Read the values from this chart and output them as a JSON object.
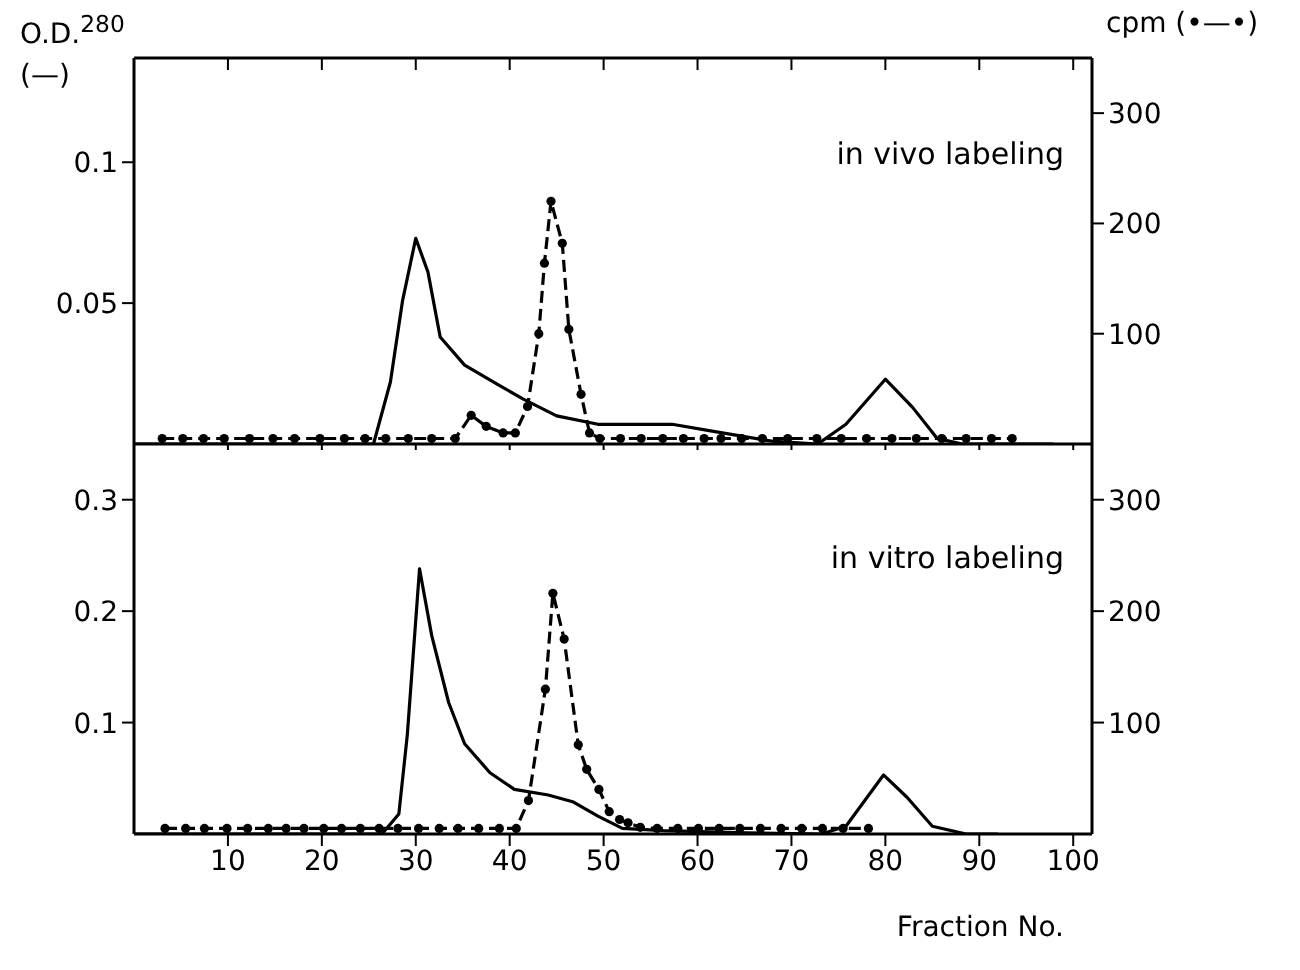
{
  "chart_data": [
    {
      "type": "line",
      "ylabel": "O.D.$^{280}$ (—)",
      "y2label": "cpm (•—•)",
      "annotations": [
        "in vivo labeling"
      ],
      "tick_labels": "y",
      "xlim": [
        0,
        102
      ],
      "xticks": [
        10,
        20,
        30,
        40,
        50,
        60,
        70,
        80,
        90,
        100
      ],
      "ylim": [
        0,
        0.137
      ],
      "yticks": [
        0.05,
        0.1
      ],
      "y2lim": [
        0,
        350
      ],
      "y2ticks": [
        100,
        200,
        300
      ],
      "series": [
        {
          "type": "line",
          "color": "#000000",
          "marker": "none",
          "line_style": "solid",
          "x": [
            0,
            10,
            20,
            25.5,
            27.3,
            28.6,
            30,
            31.3,
            32.6,
            35.2,
            38.8,
            41.4,
            45,
            49.4,
            57.3,
            61.7,
            67.9,
            72.8,
            75.8,
            80,
            82.9,
            85.5,
            88.2,
            97.9
          ],
          "values": [
            0,
            0,
            0,
            0,
            0.022,
            0.051,
            0.073,
            0.061,
            0.038,
            0.028,
            0.021,
            0.016,
            0.01,
            0.007,
            0.007,
            0.0045,
            0.001,
            0,
            0.007,
            0.023,
            0.013,
            0.002,
            0,
            0
          ]
        },
        {
          "type": "line",
          "axis": "y2",
          "color": "#000000",
          "marker": "circle",
          "line_style": "dashed",
          "x": [
            3,
            5.2,
            7.4,
            9.6,
            12.3,
            14.8,
            17.1,
            19.8,
            22.4,
            24.6,
            26.8,
            29.2,
            31.7,
            34.2,
            35.9,
            37.5,
            39.3,
            40.6,
            41.9,
            43.1,
            43.7,
            44.4,
            45.6,
            46.3,
            47.6,
            48.5,
            49.6,
            51.8,
            54,
            56.3,
            58.5,
            60.7,
            62.5,
            64.7,
            66.9,
            69.6,
            72.7,
            75.3,
            78,
            80.7,
            83.3,
            86,
            88.6,
            91.3,
            93.5
          ],
          "values": [
            5,
            5,
            5,
            5,
            5,
            5,
            5,
            5,
            5,
            5,
            5,
            5,
            5,
            5,
            26,
            16,
            10,
            10,
            34,
            100,
            164,
            220,
            182,
            104,
            45,
            10,
            5,
            5,
            5,
            5,
            5,
            5,
            5,
            5,
            5,
            5,
            5,
            5,
            5,
            5,
            5,
            5,
            5,
            5,
            5
          ]
        }
      ]
    },
    {
      "type": "line",
      "xlabel": "Fraction No.",
      "annotations": [
        "in vitro labeling"
      ],
      "xlim": [
        0,
        102
      ],
      "xticks": [
        10,
        20,
        30,
        40,
        50,
        60,
        70,
        80,
        90,
        100
      ],
      "ylim": [
        0,
        0.35
      ],
      "yticks": [
        0.1,
        0.2,
        0.3
      ],
      "y2lim": [
        0,
        350
      ],
      "y2ticks": [
        100,
        200,
        300
      ],
      "series": [
        {
          "type": "line",
          "color": "#000000",
          "marker": "none",
          "line_style": "solid",
          "x": [
            0,
            10,
            20,
            26.4,
            28.2,
            29.1,
            30.4,
            31.7,
            33.5,
            35.2,
            37.9,
            40.5,
            44.1,
            46.7,
            49.4,
            52,
            56.4,
            65.3,
            73.2,
            75.8,
            79.8,
            82.3,
            85,
            88.6,
            92
          ],
          "values": [
            0,
            0,
            0,
            0,
            0.018,
            0.089,
            0.238,
            0.178,
            0.118,
            0.081,
            0.055,
            0.04,
            0.035,
            0.029,
            0.016,
            0.005,
            0.003,
            0.001,
            0,
            0.007,
            0.053,
            0.033,
            0.007,
            0,
            0
          ]
        },
        {
          "type": "line",
          "axis": "y2",
          "color": "#000000",
          "marker": "circle",
          "line_style": "dashed",
          "x": [
            3.3,
            5.5,
            7.5,
            9.9,
            12.1,
            14.3,
            16.2,
            18.1,
            20.2,
            22.1,
            24.1,
            26.1,
            28.1,
            30.3,
            32.5,
            34.5,
            36.7,
            38.9,
            40.7,
            42,
            43.8,
            44.6,
            45.8,
            47.3,
            48.2,
            49.5,
            50.6,
            51.7,
            52.6,
            53.9,
            55.7,
            57.9,
            60.1,
            62.3,
            64.5,
            66.7,
            68.9,
            71.1,
            73.3,
            75.5,
            78.2
          ],
          "values": [
            5,
            5,
            5,
            5,
            5,
            5,
            5,
            5,
            5,
            5,
            5,
            5,
            5,
            5,
            5,
            5,
            5,
            5,
            5,
            30,
            130,
            216,
            175,
            80,
            58,
            40,
            20,
            13,
            10,
            6,
            5,
            5,
            5,
            5,
            5,
            5,
            5,
            5,
            5,
            5,
            5
          ]
        }
      ]
    }
  ]
}
